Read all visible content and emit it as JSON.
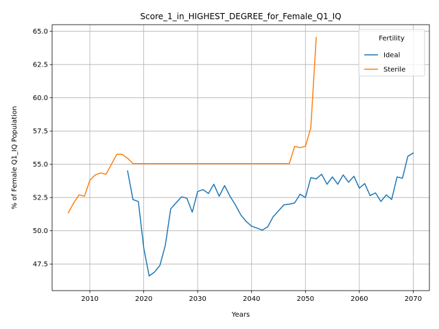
{
  "chart_data": {
    "type": "line",
    "title": "Score_1_in_HIGHEST_DEGREE_for_Female_Q1_IQ",
    "xlabel": "Years",
    "ylabel": "% of Female Q1_IQ Population",
    "xlim": [
      2003,
      2073
    ],
    "ylim": [
      45.5,
      65.5
    ],
    "xticks": [
      2010,
      2020,
      2030,
      2040,
      2050,
      2060,
      2070
    ],
    "yticks": [
      47.5,
      50.0,
      52.5,
      55.0,
      57.5,
      60.0,
      62.5,
      65.0
    ],
    "grid": true,
    "legend": {
      "title": "Fertility",
      "position": "top-right"
    },
    "series": [
      {
        "name": "Ideal",
        "color": "#1f77b4",
        "x": [
          2017,
          2018,
          2019,
          2020,
          2021,
          2022,
          2023,
          2024,
          2025,
          2026,
          2027,
          2028,
          2029,
          2030,
          2031,
          2032,
          2033,
          2034,
          2035,
          2036,
          2037,
          2038,
          2039,
          2040,
          2041,
          2042,
          2043,
          2044,
          2045,
          2046,
          2047,
          2048,
          2049,
          2050,
          2051,
          2052,
          2053,
          2054,
          2055,
          2056,
          2057,
          2058,
          2059,
          2060,
          2061,
          2062,
          2063,
          2064,
          2065,
          2066,
          2067,
          2068,
          2069,
          2070
        ],
        "y": [
          54.5,
          52.35,
          52.2,
          48.7,
          46.6,
          46.9,
          47.4,
          48.9,
          51.65,
          52.1,
          52.55,
          52.45,
          51.4,
          52.95,
          53.1,
          52.8,
          53.5,
          52.6,
          53.4,
          52.6,
          51.95,
          51.2,
          50.7,
          50.35,
          50.2,
          50.05,
          50.3,
          51.05,
          51.5,
          51.95,
          52.0,
          52.1,
          52.75,
          52.5,
          54.0,
          53.9,
          54.25,
          53.5,
          54.05,
          53.5,
          54.2,
          53.65,
          54.1,
          53.2,
          53.55,
          52.65,
          52.85,
          52.2,
          52.7,
          52.35,
          54.05,
          53.95,
          55.6,
          55.85
        ]
      },
      {
        "name": "Sterile",
        "color": "#ff7f0e",
        "x": [
          2006,
          2007,
          2008,
          2009,
          2010,
          2011,
          2012,
          2013,
          2014,
          2015,
          2016,
          2017,
          2018,
          2019,
          2020,
          2021,
          2022,
          2023,
          2024,
          2025,
          2026,
          2027,
          2028,
          2029,
          2030,
          2031,
          2032,
          2033,
          2034,
          2035,
          2036,
          2037,
          2038,
          2039,
          2040,
          2041,
          2042,
          2043,
          2044,
          2045,
          2046,
          2047,
          2048,
          2049,
          2050,
          2051,
          2052
        ],
        "y": [
          51.35,
          52.1,
          52.7,
          52.6,
          53.8,
          54.2,
          54.35,
          54.25,
          55.0,
          55.75,
          55.75,
          55.45,
          55.05,
          55.05,
          55.05,
          55.05,
          55.05,
          55.05,
          55.05,
          55.05,
          55.05,
          55.05,
          55.05,
          55.05,
          55.05,
          55.05,
          55.05,
          55.05,
          55.05,
          55.05,
          55.05,
          55.05,
          55.05,
          55.05,
          55.05,
          55.05,
          55.05,
          55.05,
          55.05,
          55.05,
          55.05,
          55.05,
          56.35,
          56.25,
          56.35,
          57.75,
          64.55
        ]
      }
    ]
  }
}
